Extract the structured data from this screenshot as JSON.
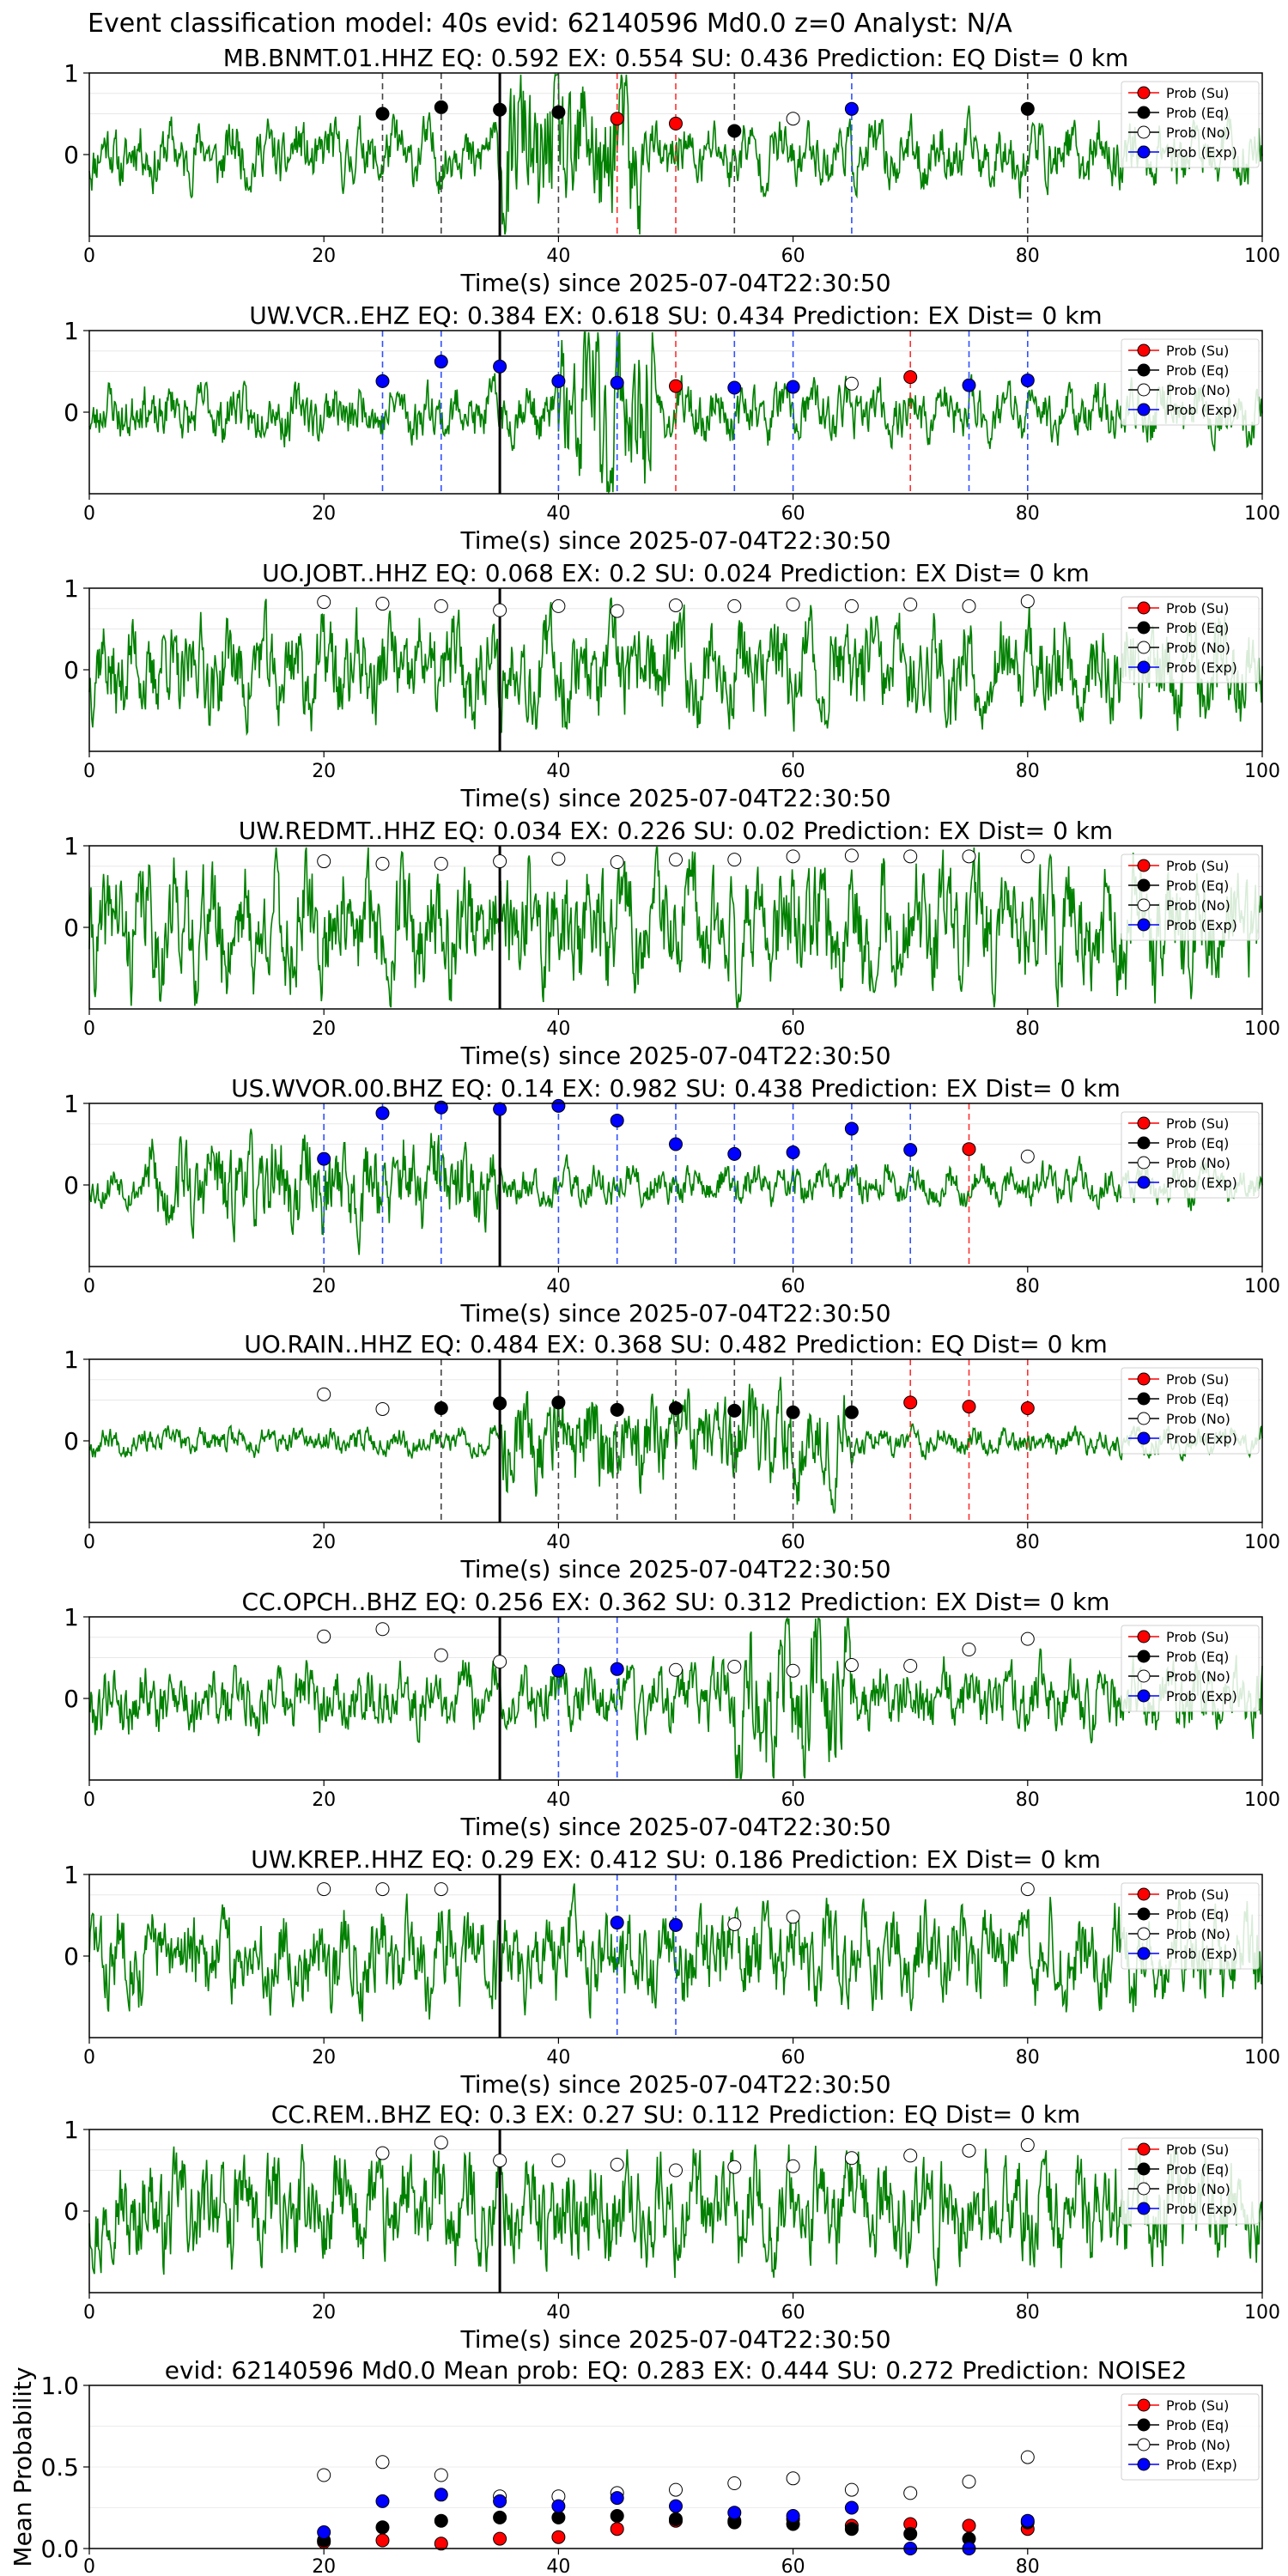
{
  "figure": {
    "suptitle": "Event classification model: 40s evid: 62140596 Md0.0 z=0 Analyst: N/A",
    "colors": {
      "trace": "#008000",
      "su": "#ff0000",
      "eq": "#000000",
      "no": "#ffffff",
      "exp": "#0000ff",
      "pick_line": "#000000"
    },
    "legend": [
      "Prob (Su)",
      "Prob (Eq)",
      "Prob (No)",
      "Prob (Exp)"
    ],
    "legend_placement": "upper-right",
    "pick_time": 35
  },
  "chart_data": [
    {
      "type": "line",
      "title": "MB.BNMT.01.HHZ   EQ: 0.592  EX: 0.554  SU: 0.436   Prediction: EQ    Dist= 0 km",
      "xlabel": "Time(s) since 2025-07-04T22:30:50",
      "xlim": [
        0,
        100
      ],
      "ylim": [
        -1,
        1
      ],
      "xticks": [
        "0",
        "20",
        "40",
        "60",
        "80",
        "100"
      ],
      "yticks": [
        "0",
        "1"
      ],
      "seed": 11,
      "amp": 0.28,
      "burst": [
        35,
        47,
        0.45
      ],
      "points": [
        {
          "t": 25,
          "p": 0.5,
          "c": "eq"
        },
        {
          "t": 30,
          "p": 0.58,
          "c": "eq"
        },
        {
          "t": 35,
          "p": 0.55,
          "c": "eq"
        },
        {
          "t": 40,
          "p": 0.52,
          "c": "eq"
        },
        {
          "t": 45,
          "p": 0.44,
          "c": "su"
        },
        {
          "t": 50,
          "p": 0.38,
          "c": "su"
        },
        {
          "t": 55,
          "p": 0.29,
          "c": "eq"
        },
        {
          "t": 60,
          "p": 0.44,
          "c": "no"
        },
        {
          "t": 65,
          "p": 0.56,
          "c": "exp"
        },
        {
          "t": 80,
          "p": 0.56,
          "c": "eq"
        }
      ]
    },
    {
      "type": "line",
      "title": "UW.VCR..EHZ   EQ: 0.384  EX: 0.618  SU: 0.434   Prediction: EX    Dist= 0 km",
      "xlabel": "Time(s) since 2025-07-04T22:30:50",
      "xlim": [
        0,
        100
      ],
      "ylim": [
        -1,
        1
      ],
      "xticks": [
        "0",
        "20",
        "40",
        "60",
        "80",
        "100"
      ],
      "yticks": [
        "0",
        "1"
      ],
      "seed": 23,
      "amp": 0.25,
      "burst": [
        40,
        48,
        0.6
      ],
      "points": [
        {
          "t": 25,
          "p": 0.38,
          "c": "exp"
        },
        {
          "t": 30,
          "p": 0.62,
          "c": "exp"
        },
        {
          "t": 35,
          "p": 0.56,
          "c": "exp"
        },
        {
          "t": 40,
          "p": 0.38,
          "c": "exp"
        },
        {
          "t": 45,
          "p": 0.36,
          "c": "exp"
        },
        {
          "t": 50,
          "p": 0.32,
          "c": "su"
        },
        {
          "t": 55,
          "p": 0.3,
          "c": "exp"
        },
        {
          "t": 60,
          "p": 0.31,
          "c": "exp"
        },
        {
          "t": 65,
          "p": 0.35,
          "c": "no"
        },
        {
          "t": 70,
          "p": 0.43,
          "c": "su"
        },
        {
          "t": 75,
          "p": 0.33,
          "c": "exp"
        },
        {
          "t": 80,
          "p": 0.39,
          "c": "exp"
        }
      ]
    },
    {
      "type": "line",
      "title": "UO.JOBT..HHZ   EQ: 0.068  EX: 0.2  SU: 0.024   Prediction: EX    Dist= 0 km",
      "xlabel": "Time(s) since 2025-07-04T22:30:50",
      "xlim": [
        0,
        100
      ],
      "ylim": [
        -1,
        1
      ],
      "xticks": [
        "0",
        "20",
        "40",
        "60",
        "80",
        "100"
      ],
      "yticks": [
        "0",
        "1"
      ],
      "seed": 37,
      "amp": 0.45,
      "burst": [
        0,
        0,
        0
      ],
      "points": [
        {
          "t": 20,
          "p": 0.83,
          "c": "no"
        },
        {
          "t": 25,
          "p": 0.81,
          "c": "no"
        },
        {
          "t": 30,
          "p": 0.78,
          "c": "no"
        },
        {
          "t": 35,
          "p": 0.73,
          "c": "no"
        },
        {
          "t": 40,
          "p": 0.78,
          "c": "no"
        },
        {
          "t": 45,
          "p": 0.72,
          "c": "no"
        },
        {
          "t": 50,
          "p": 0.79,
          "c": "no"
        },
        {
          "t": 55,
          "p": 0.78,
          "c": "no"
        },
        {
          "t": 60,
          "p": 0.8,
          "c": "no"
        },
        {
          "t": 65,
          "p": 0.78,
          "c": "no"
        },
        {
          "t": 70,
          "p": 0.8,
          "c": "no"
        },
        {
          "t": 75,
          "p": 0.78,
          "c": "no"
        },
        {
          "t": 80,
          "p": 0.84,
          "c": "no"
        }
      ]
    },
    {
      "type": "line",
      "title": "UW.REDMT..HHZ   EQ: 0.034  EX: 0.226  SU: 0.02   Prediction: EX    Dist= 0 km",
      "xlabel": "Time(s) since 2025-07-04T22:30:50",
      "xlim": [
        0,
        100
      ],
      "ylim": [
        -1,
        1
      ],
      "xticks": [
        "0",
        "20",
        "40",
        "60",
        "80",
        "100"
      ],
      "yticks": [
        "0",
        "1"
      ],
      "seed": 41,
      "amp": 0.55,
      "burst": [
        0,
        0,
        0
      ],
      "points": [
        {
          "t": 20,
          "p": 0.81,
          "c": "no"
        },
        {
          "t": 25,
          "p": 0.78,
          "c": "no"
        },
        {
          "t": 30,
          "p": 0.78,
          "c": "no"
        },
        {
          "t": 35,
          "p": 0.81,
          "c": "no"
        },
        {
          "t": 40,
          "p": 0.84,
          "c": "no"
        },
        {
          "t": 45,
          "p": 0.8,
          "c": "no"
        },
        {
          "t": 50,
          "p": 0.83,
          "c": "no"
        },
        {
          "t": 55,
          "p": 0.83,
          "c": "no"
        },
        {
          "t": 60,
          "p": 0.87,
          "c": "no"
        },
        {
          "t": 65,
          "p": 0.88,
          "c": "no"
        },
        {
          "t": 70,
          "p": 0.87,
          "c": "no"
        },
        {
          "t": 75,
          "p": 0.87,
          "c": "no"
        },
        {
          "t": 80,
          "p": 0.87,
          "c": "no"
        }
      ]
    },
    {
      "type": "line",
      "title": "US.WVOR.00.BHZ   EQ: 0.14  EX: 0.982  SU: 0.438   Prediction: EX    Dist= 0 km",
      "xlabel": "Time(s) since 2025-07-04T22:30:50",
      "xlim": [
        0,
        100
      ],
      "ylim": [
        -1,
        1
      ],
      "xticks": [
        "0",
        "20",
        "40",
        "60",
        "80",
        "100"
      ],
      "yticks": [
        "0",
        "1"
      ],
      "seed": 53,
      "amp": 0.18,
      "burst": [
        5,
        35,
        0.25
      ],
      "points": [
        {
          "t": 20,
          "p": 0.32,
          "c": "exp"
        },
        {
          "t": 25,
          "p": 0.88,
          "c": "exp"
        },
        {
          "t": 30,
          "p": 0.95,
          "c": "exp"
        },
        {
          "t": 35,
          "p": 0.93,
          "c": "exp"
        },
        {
          "t": 40,
          "p": 0.97,
          "c": "exp"
        },
        {
          "t": 45,
          "p": 0.79,
          "c": "exp"
        },
        {
          "t": 50,
          "p": 0.5,
          "c": "exp"
        },
        {
          "t": 55,
          "p": 0.38,
          "c": "exp"
        },
        {
          "t": 60,
          "p": 0.4,
          "c": "exp"
        },
        {
          "t": 65,
          "p": 0.69,
          "c": "exp"
        },
        {
          "t": 70,
          "p": 0.43,
          "c": "exp"
        },
        {
          "t": 75,
          "p": 0.44,
          "c": "su"
        },
        {
          "t": 80,
          "p": 0.35,
          "c": "no"
        }
      ]
    },
    {
      "type": "line",
      "title": "UO.RAIN..HHZ   EQ: 0.484  EX: 0.368  SU: 0.482   Prediction: EQ    Dist= 0 km",
      "xlabel": "Time(s) since 2025-07-04T22:30:50",
      "xlim": [
        0,
        100
      ],
      "ylim": [
        -1,
        1
      ],
      "xticks": [
        "0",
        "20",
        "40",
        "60",
        "80",
        "100"
      ],
      "yticks": [
        "0",
        "1"
      ],
      "seed": 67,
      "amp": 0.12,
      "burst": [
        35,
        65,
        0.3
      ],
      "points": [
        {
          "t": 20,
          "p": 0.57,
          "c": "no"
        },
        {
          "t": 25,
          "p": 0.39,
          "c": "no"
        },
        {
          "t": 30,
          "p": 0.4,
          "c": "eq"
        },
        {
          "t": 35,
          "p": 0.46,
          "c": "eq"
        },
        {
          "t": 40,
          "p": 0.47,
          "c": "eq"
        },
        {
          "t": 45,
          "p": 0.38,
          "c": "eq"
        },
        {
          "t": 50,
          "p": 0.4,
          "c": "eq"
        },
        {
          "t": 55,
          "p": 0.37,
          "c": "eq"
        },
        {
          "t": 60,
          "p": 0.35,
          "c": "eq"
        },
        {
          "t": 65,
          "p": 0.35,
          "c": "eq"
        },
        {
          "t": 70,
          "p": 0.47,
          "c": "su"
        },
        {
          "t": 75,
          "p": 0.42,
          "c": "su"
        },
        {
          "t": 80,
          "p": 0.4,
          "c": "su"
        }
      ]
    },
    {
      "type": "line",
      "title": "CC.OPCH..BHZ   EQ: 0.256  EX: 0.362  SU: 0.312   Prediction: EX    Dist= 0 km",
      "xlabel": "Time(s) since 2025-07-04T22:30:50",
      "xlim": [
        0,
        100
      ],
      "ylim": [
        -1,
        1
      ],
      "xticks": [
        "0",
        "20",
        "40",
        "60",
        "80",
        "100"
      ],
      "yticks": [
        "0",
        "1"
      ],
      "seed": 79,
      "amp": 0.3,
      "burst": [
        55,
        65,
        0.4
      ],
      "points": [
        {
          "t": 20,
          "p": 0.76,
          "c": "no"
        },
        {
          "t": 25,
          "p": 0.85,
          "c": "no"
        },
        {
          "t": 30,
          "p": 0.53,
          "c": "no"
        },
        {
          "t": 35,
          "p": 0.45,
          "c": "no"
        },
        {
          "t": 40,
          "p": 0.34,
          "c": "exp"
        },
        {
          "t": 45,
          "p": 0.36,
          "c": "exp"
        },
        {
          "t": 50,
          "p": 0.35,
          "c": "no"
        },
        {
          "t": 55,
          "p": 0.39,
          "c": "no"
        },
        {
          "t": 60,
          "p": 0.34,
          "c": "no"
        },
        {
          "t": 65,
          "p": 0.41,
          "c": "no"
        },
        {
          "t": 70,
          "p": 0.4,
          "c": "no"
        },
        {
          "t": 75,
          "p": 0.6,
          "c": "no"
        },
        {
          "t": 80,
          "p": 0.73,
          "c": "no"
        }
      ]
    },
    {
      "type": "line",
      "title": "UW.KREP..HHZ   EQ: 0.29  EX: 0.412  SU: 0.186   Prediction: EX    Dist= 0 km",
      "xlabel": "Time(s) since 2025-07-04T22:30:50",
      "xlim": [
        0,
        100
      ],
      "ylim": [
        -1,
        1
      ],
      "xticks": [
        "0",
        "20",
        "40",
        "60",
        "80",
        "100"
      ],
      "yticks": [
        "0",
        "1"
      ],
      "seed": 83,
      "amp": 0.42,
      "burst": [
        0,
        0,
        0
      ],
      "points": [
        {
          "t": 20,
          "p": 0.82,
          "c": "no"
        },
        {
          "t": 25,
          "p": 0.82,
          "c": "no"
        },
        {
          "t": 30,
          "p": 0.82,
          "c": "no"
        },
        {
          "t": 45,
          "p": 0.41,
          "c": "exp"
        },
        {
          "t": 50,
          "p": 0.38,
          "c": "exp"
        },
        {
          "t": 55,
          "p": 0.39,
          "c": "no"
        },
        {
          "t": 60,
          "p": 0.48,
          "c": "no"
        },
        {
          "t": 80,
          "p": 0.82,
          "c": "no"
        }
      ]
    },
    {
      "type": "line",
      "title": "CC.REM..BHZ   EQ: 0.3  EX: 0.27  SU: 0.112   Prediction: EQ    Dist= 0 km",
      "xlabel": "Time(s) since 2025-07-04T22:30:50",
      "xlim": [
        0,
        100
      ],
      "ylim": [
        -1,
        1
      ],
      "xticks": [
        "0",
        "20",
        "40",
        "60",
        "80",
        "100"
      ],
      "yticks": [
        "0",
        "1"
      ],
      "seed": 97,
      "amp": 0.48,
      "burst": [
        0,
        0,
        0
      ],
      "points": [
        {
          "t": 25,
          "p": 0.71,
          "c": "no"
        },
        {
          "t": 30,
          "p": 0.84,
          "c": "no"
        },
        {
          "t": 35,
          "p": 0.62,
          "c": "no"
        },
        {
          "t": 40,
          "p": 0.62,
          "c": "no"
        },
        {
          "t": 45,
          "p": 0.57,
          "c": "no"
        },
        {
          "t": 50,
          "p": 0.5,
          "c": "no"
        },
        {
          "t": 55,
          "p": 0.54,
          "c": "no"
        },
        {
          "t": 60,
          "p": 0.55,
          "c": "no"
        },
        {
          "t": 65,
          "p": 0.65,
          "c": "no"
        },
        {
          "t": 70,
          "p": 0.68,
          "c": "no"
        },
        {
          "t": 75,
          "p": 0.74,
          "c": "no"
        },
        {
          "t": 80,
          "p": 0.81,
          "c": "no"
        }
      ]
    },
    {
      "type": "scatter",
      "title": "evid: 62140596  Md0.0   Mean prob:    EQ: 0.283  EX: 0.444  SU: 0.272   Prediction: NOISE2",
      "ylabel": "Mean Probability",
      "xlim": [
        0,
        100
      ],
      "ylim": [
        0,
        1
      ],
      "xticks": [
        "0",
        "20",
        "40",
        "60",
        "80"
      ],
      "yticks": [
        "0.0",
        "0.5",
        "1.0"
      ],
      "x": [
        20,
        25,
        30,
        35,
        40,
        45,
        50,
        55,
        60,
        65,
        70,
        75,
        80
      ],
      "series": [
        {
          "name": "Prob (Su)",
          "color": "#ff0000",
          "values": [
            0.04,
            0.05,
            0.03,
            0.06,
            0.07,
            0.12,
            0.17,
            0.17,
            0.18,
            0.14,
            0.15,
            0.14,
            0.12
          ]
        },
        {
          "name": "Prob (Eq)",
          "color": "#000000",
          "values": [
            0.05,
            0.13,
            0.17,
            0.19,
            0.19,
            0.2,
            0.18,
            0.16,
            0.15,
            0.12,
            0.09,
            0.06,
            0.16
          ]
        },
        {
          "name": "Prob (No)",
          "color": "#ffffff",
          "values": [
            0.45,
            0.53,
            0.45,
            0.32,
            0.32,
            0.34,
            0.36,
            0.4,
            0.43,
            0.36,
            0.34,
            0.41,
            0.56
          ]
        },
        {
          "name": "Prob (Exp)",
          "color": "#0000ff",
          "values": [
            0.1,
            0.29,
            0.33,
            0.29,
            0.26,
            0.31,
            0.26,
            0.22,
            0.2,
            0.25,
            0.0,
            0.0,
            0.17
          ]
        }
      ]
    }
  ]
}
